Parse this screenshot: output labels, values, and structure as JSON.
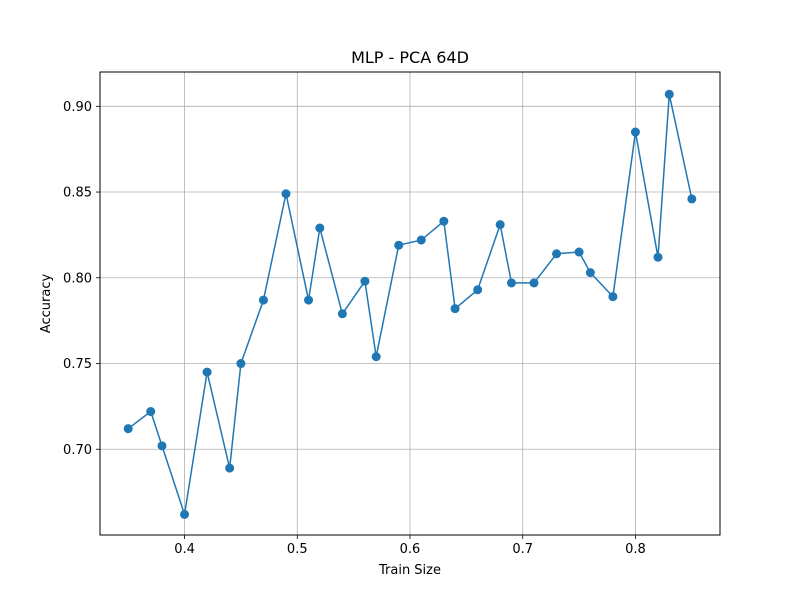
{
  "chart_data": {
    "type": "line",
    "title": "MLP - PCA 64D",
    "xlabel": "Train Size",
    "ylabel": "Accuracy",
    "xlim": [
      0.325,
      0.875
    ],
    "ylim": [
      0.65,
      0.92
    ],
    "xticks": [
      0.4,
      0.5,
      0.6,
      0.7,
      0.8
    ],
    "xtick_labels": [
      "0.4",
      "0.5",
      "0.6",
      "0.7",
      "0.8"
    ],
    "yticks": [
      0.7,
      0.75,
      0.8,
      0.85,
      0.9
    ],
    "ytick_labels": [
      "0.70",
      "0.75",
      "0.80",
      "0.85",
      "0.90"
    ],
    "grid": true,
    "color": "#1f77b4",
    "marker": "circle",
    "x": [
      0.35,
      0.37,
      0.38,
      0.4,
      0.42,
      0.44,
      0.45,
      0.47,
      0.49,
      0.51,
      0.52,
      0.54,
      0.56,
      0.57,
      0.59,
      0.61,
      0.63,
      0.64,
      0.66,
      0.68,
      0.69,
      0.71,
      0.73,
      0.75,
      0.76,
      0.78,
      0.8,
      0.82,
      0.83,
      0.85
    ],
    "y": [
      0.712,
      0.722,
      0.702,
      0.662,
      0.745,
      0.689,
      0.75,
      0.787,
      0.849,
      0.787,
      0.829,
      0.779,
      0.798,
      0.754,
      0.819,
      0.822,
      0.833,
      0.782,
      0.793,
      0.831,
      0.797,
      0.797,
      0.814,
      0.815,
      0.803,
      0.789,
      0.885,
      0.812,
      0.907,
      0.846
    ]
  }
}
